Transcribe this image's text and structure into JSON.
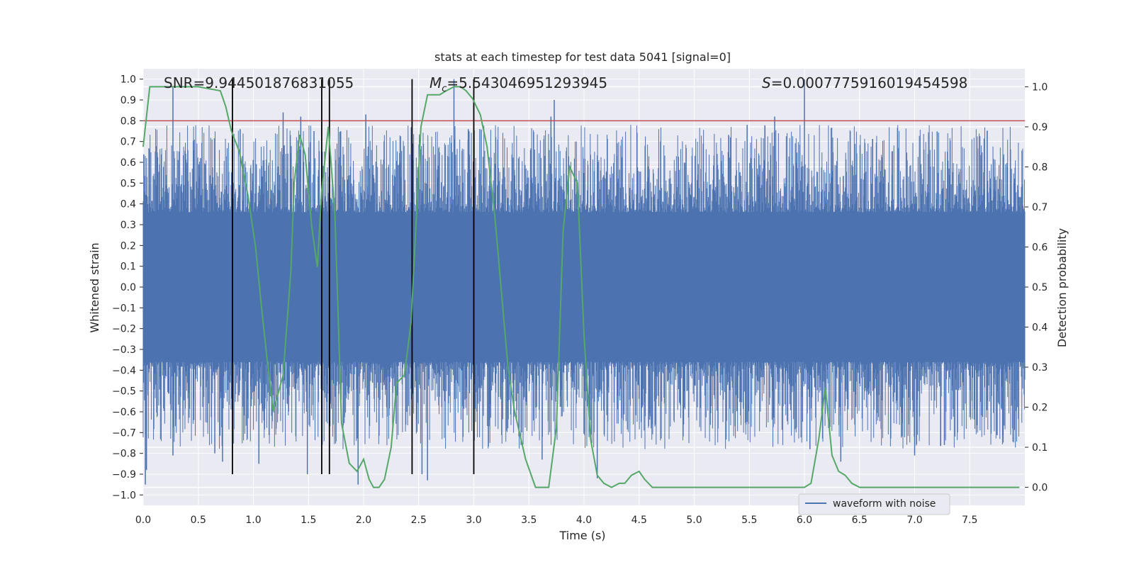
{
  "chart_data": {
    "type": "line",
    "title": "stats at each timestep for test data 5041 [signal=0]",
    "xlabel": "Time (s)",
    "ylabel_left": "Whitened strain",
    "ylabel_right": "Detection probability",
    "xlim": [
      0.0,
      8.0
    ],
    "ylim_left": [
      -1.05,
      1.05
    ],
    "ylim_right": [
      -0.045,
      1.045
    ],
    "x_ticks": [
      0.0,
      0.5,
      1.0,
      1.5,
      2.0,
      2.5,
      3.0,
      3.5,
      4.0,
      4.5,
      5.0,
      5.5,
      6.0,
      6.5,
      7.0,
      7.5
    ],
    "x_tick_labels": [
      "0.0",
      "0.5",
      "1.0",
      "1.5",
      "2.0",
      "2.5",
      "3.0",
      "3.5",
      "4.0",
      "4.5",
      "5.0",
      "5.5",
      "6.0",
      "6.5",
      "7.0",
      "7.5"
    ],
    "y_left_ticks": [
      1.0,
      0.9,
      0.8,
      0.7,
      0.6,
      0.5,
      0.4,
      0.3,
      0.2,
      0.1,
      0.0,
      -0.1,
      -0.2,
      -0.3,
      -0.4,
      -0.5,
      -0.6,
      -0.7,
      -0.8,
      -0.9,
      -1.0
    ],
    "y_left_tick_labels": [
      "1.0",
      "0.9",
      "0.8",
      "0.7",
      "0.6",
      "0.5",
      "0.4",
      "0.3",
      "0.2",
      "0.1",
      "0.0",
      "−0.1",
      "−0.2",
      "−0.3",
      "−0.4",
      "−0.5",
      "−0.6",
      "−0.7",
      "−0.8",
      "−0.9",
      "−1.0"
    ],
    "y_right_ticks": [
      1.0,
      0.9,
      0.8,
      0.7,
      0.6,
      0.5,
      0.4,
      0.3,
      0.2,
      0.1,
      0.0
    ],
    "y_right_tick_labels": [
      "1.0",
      "0.9",
      "0.8",
      "0.7",
      "0.6",
      "0.5",
      "0.4",
      "0.3",
      "0.2",
      "0.1",
      "0.0"
    ],
    "annotations": {
      "snr": "SNR=9.944501876831055",
      "mc_symbol": "M",
      "mc_sub": "c",
      "mc_value": "=5.543046951293945",
      "s_symbol": "S",
      "s_value": "=0.0007775916019454598"
    },
    "threshold": {
      "value": 0.8,
      "color": "#c44e52"
    },
    "vertical_lines": [
      0.81,
      1.62,
      1.69,
      2.44,
      3.0
    ],
    "vertical_line_range": [
      -0.9,
      1.0
    ],
    "waveform": {
      "name": "waveform with noise",
      "color": "#4c72b0",
      "x_range": [
        0.0,
        8.0
      ],
      "n_samples": 2048,
      "core_amplitude": 0.36,
      "spikes": [
        {
          "x": 0.02,
          "y": -0.95
        },
        {
          "x": 0.03,
          "y": -0.88
        },
        {
          "x": 0.27,
          "y": 0.96
        },
        {
          "x": 0.27,
          "y": -0.81
        },
        {
          "x": 0.52,
          "y": 0.62
        },
        {
          "x": 0.65,
          "y": -0.8
        },
        {
          "x": 0.72,
          "y": -0.84
        },
        {
          "x": 0.88,
          "y": 0.76
        },
        {
          "x": 1.05,
          "y": -0.85
        },
        {
          "x": 1.27,
          "y": 0.84
        },
        {
          "x": 1.43,
          "y": 0.82
        },
        {
          "x": 1.49,
          "y": -0.9
        },
        {
          "x": 1.55,
          "y": 0.75
        },
        {
          "x": 1.95,
          "y": -0.95
        },
        {
          "x": 2.02,
          "y": 0.83
        },
        {
          "x": 2.53,
          "y": -0.9
        },
        {
          "x": 2.58,
          "y": -0.93
        },
        {
          "x": 2.82,
          "y": 1.0
        },
        {
          "x": 2.95,
          "y": 0.76
        },
        {
          "x": 3.62,
          "y": -0.83
        },
        {
          "x": 3.7,
          "y": 0.82
        },
        {
          "x": 3.73,
          "y": 0.9
        },
        {
          "x": 4.12,
          "y": -0.92
        },
        {
          "x": 5.33,
          "y": 0.72
        },
        {
          "x": 5.48,
          "y": 0.78
        },
        {
          "x": 5.73,
          "y": 0.82
        },
        {
          "x": 6.0,
          "y": 1.0
        },
        {
          "x": 6.05,
          "y": -0.78
        },
        {
          "x": 6.33,
          "y": -0.84
        },
        {
          "x": 7.0,
          "y": -0.81
        },
        {
          "x": 7.27,
          "y": -0.76
        }
      ]
    },
    "probability": {
      "color": "#55a868",
      "x": [
        0.0,
        0.06,
        0.12,
        0.25,
        0.5,
        0.7,
        0.75,
        0.8,
        0.87,
        0.95,
        1.02,
        1.07,
        1.12,
        1.18,
        1.27,
        1.34,
        1.37,
        1.42,
        1.47,
        1.53,
        1.58,
        1.62,
        1.68,
        1.74,
        1.8,
        1.87,
        1.94,
        2.0,
        2.05,
        2.09,
        2.14,
        2.19,
        2.25,
        2.3,
        2.37,
        2.43,
        2.52,
        2.58,
        2.69,
        2.75,
        2.82,
        2.88,
        2.93,
        2.99,
        3.06,
        3.12,
        3.19,
        3.25,
        3.31,
        3.37,
        3.47,
        3.56,
        3.62,
        3.68,
        3.75,
        3.81,
        3.87,
        3.94,
        4.0,
        4.06,
        4.12,
        4.18,
        4.25,
        4.32,
        4.37,
        4.43,
        4.5,
        4.55,
        4.62,
        4.75,
        5.0,
        5.25,
        5.39,
        5.5,
        5.75,
        5.93,
        6.0,
        6.06,
        6.13,
        6.19,
        6.25,
        6.31,
        6.37,
        6.43,
        6.5,
        6.62,
        7.0,
        7.37,
        7.5,
        7.95
      ],
      "y": [
        0.85,
        1.0,
        1.0,
        1.0,
        1.0,
        0.99,
        0.95,
        0.89,
        0.84,
        0.73,
        0.6,
        0.46,
        0.33,
        0.19,
        0.28,
        0.54,
        0.76,
        0.88,
        0.83,
        0.65,
        0.55,
        0.74,
        0.9,
        0.68,
        0.16,
        0.06,
        0.04,
        0.07,
        0.02,
        0.0,
        0.0,
        0.02,
        0.1,
        0.26,
        0.28,
        0.41,
        0.9,
        0.98,
        0.98,
        0.99,
        1.0,
        1.0,
        0.99,
        0.97,
        0.93,
        0.85,
        0.68,
        0.49,
        0.3,
        0.19,
        0.07,
        0.0,
        0.0,
        0.0,
        0.15,
        0.64,
        0.8,
        0.76,
        0.38,
        0.12,
        0.03,
        0.01,
        0.0,
        0.01,
        0.01,
        0.03,
        0.04,
        0.02,
        0.0,
        0.0,
        0.0,
        0.0,
        0.0,
        0.0,
        0.0,
        0.0,
        0.0,
        0.01,
        0.12,
        0.25,
        0.08,
        0.04,
        0.03,
        0.01,
        0.0,
        0.0,
        0.0,
        0.0,
        0.0,
        0.0
      ]
    },
    "legend": {
      "entries": [
        "waveform with noise"
      ],
      "position": "lower center-right"
    }
  }
}
